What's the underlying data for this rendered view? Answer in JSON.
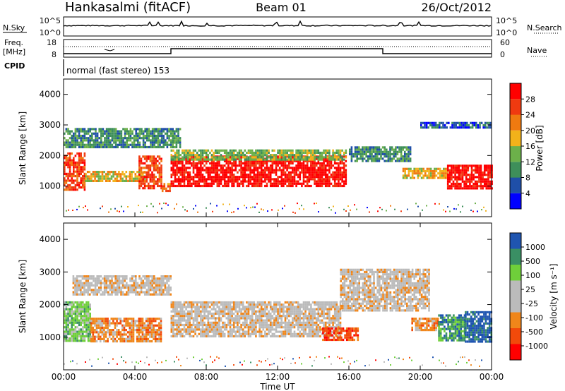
{
  "header": {
    "radar": "Hankasalmi (fitACF)",
    "beam": "Beam 01",
    "date": "26/Oct/2012"
  },
  "panels": {
    "nsky_label": "N.Sky",
    "nsearch_label": "N.Search",
    "nsky_ticks": [
      "10^5",
      "10^0"
    ],
    "nsearch_ticks": [
      "10^5",
      "10^0"
    ],
    "freq_label_1": "Freq.",
    "freq_label_2": "[MHz]",
    "freq_ticks": [
      "18",
      "8"
    ],
    "nave_label": "Nave",
    "nave_ticks": [
      "60",
      "0"
    ],
    "cpid_label": "CPID",
    "cpid_text": "normal (fast stereo) 153"
  },
  "colors": {
    "power": [
      "#0000ff",
      "#1f4fa8",
      "#3e8f5a",
      "#6cb04a",
      "#f2b21a",
      "#f07a10",
      "#f03a10",
      "#ff0000"
    ],
    "velocity": [
      "#ff0000",
      "#f24a0a",
      "#f0861a",
      "#bbbbbb",
      "#bbbbbb",
      "#6fcf3a",
      "#3a8f64",
      "#1f55b0"
    ],
    "gray": "#bdbdb5"
  },
  "chart_data": [
    {
      "type": "heatmap",
      "name": "power",
      "ylabel": "Slant Range [km]",
      "xlabel": "",
      "ylim": [
        0,
        4500
      ],
      "yticks": [
        "1000",
        "2000",
        "3000",
        "4000"
      ],
      "colorbar": {
        "label": "Power [dB]",
        "ticks": [
          "4",
          "8",
          "12",
          "16",
          "20",
          "24",
          "28"
        ]
      },
      "features": [
        {
          "t0": 0.0,
          "t1": 1.2,
          "r0": 900,
          "r1": 2100,
          "level": 6
        },
        {
          "t0": 1.2,
          "t1": 4.5,
          "r0": 1200,
          "r1": 1500,
          "level": 4
        },
        {
          "t0": 4.2,
          "t1": 5.5,
          "r0": 900,
          "r1": 2000,
          "level": 6
        },
        {
          "t0": 5.5,
          "t1": 6.0,
          "r0": 850,
          "r1": 1100,
          "level": 5
        },
        {
          "t0": 6.0,
          "t1": 15.8,
          "r0": 1000,
          "r1": 2000,
          "level": 7
        },
        {
          "t0": 6.0,
          "t1": 15.8,
          "r0": 1900,
          "r1": 2200,
          "level": 3
        },
        {
          "t0": 0.0,
          "t1": 6.5,
          "r0": 2300,
          "r1": 2900,
          "level": 2
        },
        {
          "t0": 16.0,
          "t1": 19.5,
          "r0": 1800,
          "r1": 2300,
          "level": 2
        },
        {
          "t0": 19.0,
          "t1": 21.5,
          "r0": 1300,
          "r1": 1600,
          "level": 4
        },
        {
          "t0": 21.5,
          "t1": 24.0,
          "r0": 900,
          "r1": 1700,
          "level": 7
        },
        {
          "t0": 20.0,
          "t1": 24.0,
          "r0": 2900,
          "r1": 3100,
          "level": 1
        }
      ]
    },
    {
      "type": "heatmap",
      "name": "velocity",
      "ylabel": "Slant Range [km]",
      "xlabel": "Time UT",
      "ylim": [
        0,
        4500
      ],
      "yticks": [
        "1000",
        "2000",
        "3000",
        "4000"
      ],
      "xticks": [
        "00:00",
        "04:00",
        "08:00",
        "12:00",
        "16:00",
        "20:00",
        "00:00"
      ],
      "colorbar": {
        "label": "Velocity [m s⁻¹]",
        "ticks": [
          "-1000",
          "-500",
          "-100",
          "-25",
          "25",
          "100",
          "500",
          "1000"
        ]
      },
      "features": [
        {
          "t0": 0.0,
          "t1": 1.5,
          "r0": 900,
          "r1": 2100,
          "level": 5
        },
        {
          "t0": 0.5,
          "t1": 6.0,
          "r0": 2300,
          "r1": 2900,
          "level": 3
        },
        {
          "t0": 1.5,
          "t1": 5.5,
          "r0": 900,
          "r1": 1600,
          "level": 2
        },
        {
          "t0": 6.0,
          "t1": 15.5,
          "r0": 1000,
          "r1": 2100,
          "level": 3
        },
        {
          "t0": 14.5,
          "t1": 16.5,
          "r0": 900,
          "r1": 1300,
          "level": 1
        },
        {
          "t0": 15.5,
          "t1": 20.5,
          "r0": 1800,
          "r1": 3100,
          "level": 3
        },
        {
          "t0": 19.5,
          "t1": 21.0,
          "r0": 1200,
          "r1": 1600,
          "level": 2
        },
        {
          "t0": 21.0,
          "t1": 22.5,
          "r0": 900,
          "r1": 1700,
          "level": 6
        },
        {
          "t0": 22.5,
          "t1": 24.0,
          "r0": 900,
          "r1": 1800,
          "level": 7
        }
      ]
    }
  ]
}
